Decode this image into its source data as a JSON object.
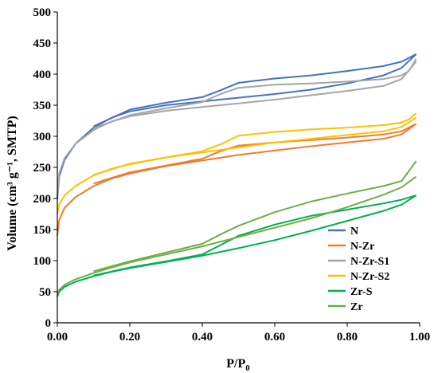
{
  "chart_data": {
    "type": "line",
    "title": "",
    "xlabel": "P/P",
    "xlabel_sub": "0",
    "ylabel": "Volume (cm³ g⁻¹, SMTP)",
    "xlim": [
      0,
      1
    ],
    "ylim": [
      0,
      500
    ],
    "x_ticks": [
      0,
      0.2,
      0.4,
      0.6,
      0.8,
      1.0
    ],
    "x_tick_labels": [
      "0.00",
      "0.20",
      "0.40",
      "0.60",
      "0.80",
      "1.00"
    ],
    "y_ticks": [
      0,
      50,
      100,
      150,
      200,
      250,
      300,
      350,
      400,
      450,
      500
    ],
    "y_tick_labels": [
      "0",
      "50",
      "100",
      "150",
      "200",
      "250",
      "300",
      "350",
      "400",
      "450",
      "500"
    ],
    "grid": false,
    "legend_position": "bottom-right",
    "series": [
      {
        "name": "N",
        "color": "#4472C4",
        "adsorption": [
          [
            0,
            200
          ],
          [
            0.005,
            235
          ],
          [
            0.02,
            262
          ],
          [
            0.05,
            288
          ],
          [
            0.1,
            314
          ],
          [
            0.15,
            330
          ],
          [
            0.2,
            340
          ],
          [
            0.3,
            350
          ],
          [
            0.4,
            356
          ],
          [
            0.5,
            362
          ],
          [
            0.6,
            368
          ],
          [
            0.7,
            375
          ],
          [
            0.8,
            385
          ],
          [
            0.9,
            398
          ],
          [
            0.95,
            410
          ],
          [
            0.99,
            432
          ]
        ],
        "desorption": [
          [
            0.99,
            432
          ],
          [
            0.95,
            420
          ],
          [
            0.9,
            413
          ],
          [
            0.8,
            405
          ],
          [
            0.7,
            398
          ],
          [
            0.6,
            393
          ],
          [
            0.5,
            386
          ],
          [
            0.45,
            374
          ],
          [
            0.4,
            363
          ],
          [
            0.3,
            354
          ],
          [
            0.2,
            343
          ],
          [
            0.1,
            316
          ]
        ]
      },
      {
        "name": "N-Zr",
        "color": "#ED7D31",
        "adsorption": [
          [
            0,
            140
          ],
          [
            0.005,
            165
          ],
          [
            0.02,
            185
          ],
          [
            0.05,
            202
          ],
          [
            0.1,
            220
          ],
          [
            0.15,
            232
          ],
          [
            0.2,
            240
          ],
          [
            0.3,
            252
          ],
          [
            0.4,
            261
          ],
          [
            0.5,
            270
          ],
          [
            0.6,
            277
          ],
          [
            0.7,
            284
          ],
          [
            0.8,
            290
          ],
          [
            0.9,
            296
          ],
          [
            0.95,
            303
          ],
          [
            0.99,
            320
          ]
        ],
        "desorption": [
          [
            0.99,
            320
          ],
          [
            0.95,
            308
          ],
          [
            0.9,
            303
          ],
          [
            0.8,
            298
          ],
          [
            0.7,
            294
          ],
          [
            0.6,
            290
          ],
          [
            0.5,
            285
          ],
          [
            0.45,
            276
          ],
          [
            0.4,
            264
          ],
          [
            0.3,
            253
          ],
          [
            0.2,
            242
          ],
          [
            0.1,
            224
          ]
        ]
      },
      {
        "name": "N-Zr-S1",
        "color": "#A5A5A5",
        "adsorption": [
          [
            0,
            205
          ],
          [
            0.005,
            240
          ],
          [
            0.02,
            265
          ],
          [
            0.05,
            288
          ],
          [
            0.1,
            310
          ],
          [
            0.15,
            324
          ],
          [
            0.2,
            332
          ],
          [
            0.3,
            341
          ],
          [
            0.4,
            347
          ],
          [
            0.5,
            353
          ],
          [
            0.6,
            359
          ],
          [
            0.7,
            366
          ],
          [
            0.8,
            373
          ],
          [
            0.9,
            381
          ],
          [
            0.95,
            392
          ],
          [
            0.99,
            420
          ]
        ],
        "desorption": [
          [
            0.99,
            424
          ],
          [
            0.97,
            405
          ],
          [
            0.95,
            398
          ],
          [
            0.9,
            392
          ],
          [
            0.8,
            388
          ],
          [
            0.7,
            385
          ],
          [
            0.6,
            383
          ],
          [
            0.5,
            378
          ],
          [
            0.45,
            368
          ],
          [
            0.4,
            355
          ],
          [
            0.3,
            345
          ],
          [
            0.2,
            334
          ],
          [
            0.1,
            313
          ]
        ]
      },
      {
        "name": "N-Zr-S2",
        "color": "#FFC000",
        "adsorption": [
          [
            0,
            175
          ],
          [
            0.005,
            190
          ],
          [
            0.02,
            205
          ],
          [
            0.05,
            220
          ],
          [
            0.1,
            237
          ],
          [
            0.15,
            248
          ],
          [
            0.2,
            255
          ],
          [
            0.3,
            266
          ],
          [
            0.4,
            274
          ],
          [
            0.5,
            282
          ],
          [
            0.6,
            290
          ],
          [
            0.7,
            296
          ],
          [
            0.8,
            302
          ],
          [
            0.9,
            308
          ],
          [
            0.95,
            315
          ],
          [
            0.99,
            330
          ]
        ],
        "desorption": [
          [
            0.99,
            337
          ],
          [
            0.97,
            327
          ],
          [
            0.95,
            322
          ],
          [
            0.9,
            318
          ],
          [
            0.8,
            314
          ],
          [
            0.7,
            311
          ],
          [
            0.6,
            307
          ],
          [
            0.5,
            301
          ],
          [
            0.45,
            287
          ],
          [
            0.4,
            276
          ],
          [
            0.3,
            266
          ],
          [
            0.2,
            256
          ],
          [
            0.1,
            238
          ]
        ]
      },
      {
        "name": "Zr-S",
        "color": "#00B050",
        "adsorption": [
          [
            0,
            42
          ],
          [
            0.005,
            50
          ],
          [
            0.02,
            58
          ],
          [
            0.05,
            66
          ],
          [
            0.1,
            75
          ],
          [
            0.15,
            82
          ],
          [
            0.2,
            88
          ],
          [
            0.3,
            98
          ],
          [
            0.4,
            108
          ],
          [
            0.5,
            120
          ],
          [
            0.6,
            133
          ],
          [
            0.7,
            148
          ],
          [
            0.8,
            164
          ],
          [
            0.9,
            180
          ],
          [
            0.95,
            190
          ],
          [
            0.99,
            205
          ]
        ],
        "desorption": [
          [
            0.99,
            205
          ],
          [
            0.95,
            198
          ],
          [
            0.9,
            192
          ],
          [
            0.8,
            182
          ],
          [
            0.7,
            172
          ],
          [
            0.6,
            158
          ],
          [
            0.5,
            140
          ],
          [
            0.45,
            125
          ],
          [
            0.4,
            110
          ],
          [
            0.3,
            99
          ],
          [
            0.2,
            89
          ],
          [
            0.1,
            76
          ]
        ]
      },
      {
        "name": "Zr",
        "color": "#70AD47",
        "adsorption": [
          [
            0,
            45
          ],
          [
            0.005,
            53
          ],
          [
            0.02,
            61
          ],
          [
            0.05,
            70
          ],
          [
            0.1,
            80
          ],
          [
            0.15,
            89
          ],
          [
            0.2,
            97
          ],
          [
            0.3,
            110
          ],
          [
            0.4,
            123
          ],
          [
            0.5,
            138
          ],
          [
            0.6,
            153
          ],
          [
            0.7,
            168
          ],
          [
            0.8,
            186
          ],
          [
            0.9,
            206
          ],
          [
            0.95,
            218
          ],
          [
            0.99,
            235
          ]
        ],
        "desorption": [
          [
            0.99,
            260
          ],
          [
            0.95,
            228
          ],
          [
            0.9,
            220
          ],
          [
            0.8,
            208
          ],
          [
            0.7,
            195
          ],
          [
            0.6,
            178
          ],
          [
            0.5,
            156
          ],
          [
            0.45,
            142
          ],
          [
            0.4,
            127
          ],
          [
            0.3,
            113
          ],
          [
            0.2,
            99
          ],
          [
            0.1,
            83
          ]
        ]
      }
    ]
  }
}
